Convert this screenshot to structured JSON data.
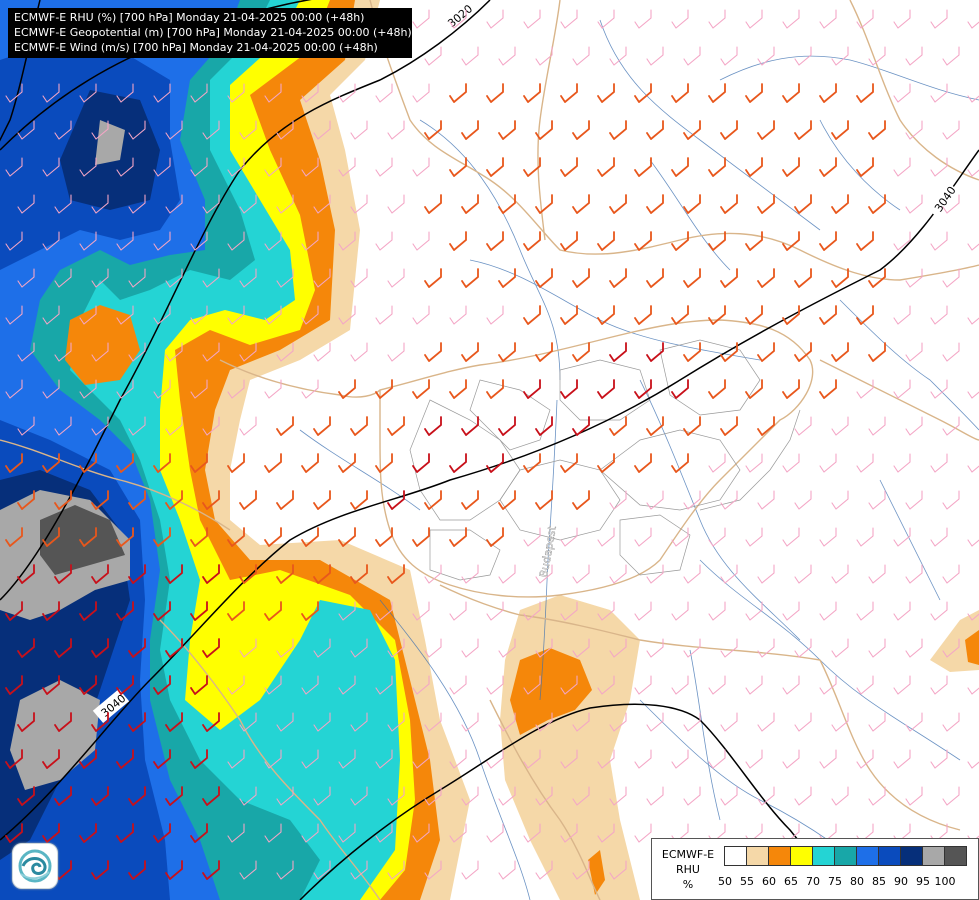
{
  "header": {
    "lines": [
      "ECMWF-E RHU (%) [700 hPa] Monday 21-04-2025 00:00 (+48h)",
      "ECMWF-E Geopotential (m) [700 hPa] Monday 21-04-2025 00:00 (+48h)",
      "ECMWF-E Wind (m/s) [700 hPa] Monday 21-04-2025 00:00 (+48h)"
    ]
  },
  "map": {
    "contours": [
      {
        "label": "3020",
        "color": "#000000"
      },
      {
        "label": "3040",
        "color": "#000000"
      },
      {
        "label": "3040",
        "color": "#000000"
      }
    ],
    "place_label": "Budapest",
    "wind_colors": {
      "light": "#f4a6c6",
      "moderate": "#e8571c",
      "strong": "#c8101a"
    }
  },
  "legend": {
    "title": "ECMWF-E\nRHU\n%",
    "title_lines": [
      "ECMWF-E",
      "RHU",
      "%"
    ],
    "colors": [
      "#ffffff",
      "#f5d8a8",
      "#f5870a",
      "#ffff00",
      "#24d4d4",
      "#18a7a8",
      "#1e6fe8",
      "#0a4bbd",
      "#062f7a",
      "#a8a8a8",
      "#555555"
    ],
    "ticks": [
      "50",
      "55",
      "60",
      "65",
      "70",
      "75",
      "80",
      "85",
      "90",
      "95",
      "100"
    ]
  },
  "logo": {
    "icon": "ecmwf-swirl-icon"
  }
}
